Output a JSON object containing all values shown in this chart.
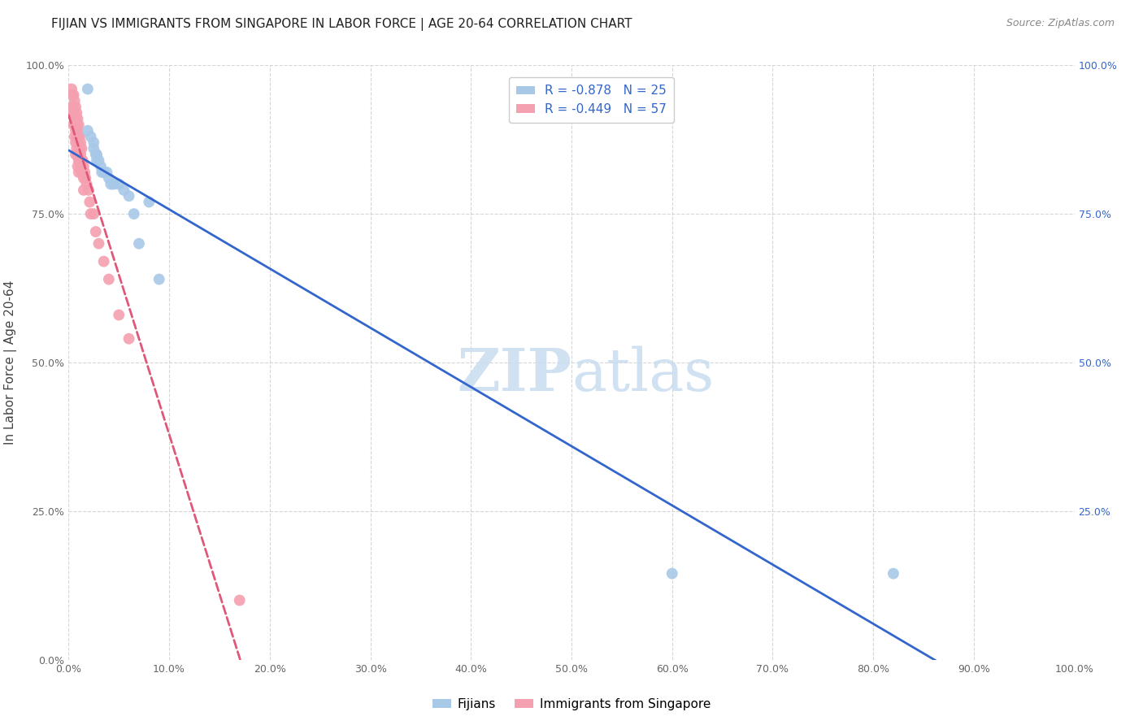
{
  "title": "FIJIAN VS IMMIGRANTS FROM SINGAPORE IN LABOR FORCE | AGE 20-64 CORRELATION CHART",
  "source": "Source: ZipAtlas.com",
  "ylabel": "In Labor Force | Age 20-64",
  "xlim": [
    0.0,
    1.0
  ],
  "ylim": [
    0.0,
    1.0
  ],
  "xtick_labels": [
    "0.0%",
    "10.0%",
    "20.0%",
    "30.0%",
    "40.0%",
    "50.0%",
    "60.0%",
    "70.0%",
    "80.0%",
    "90.0%",
    "100.0%"
  ],
  "xtick_values": [
    0.0,
    0.1,
    0.2,
    0.3,
    0.4,
    0.5,
    0.6,
    0.7,
    0.8,
    0.9,
    1.0
  ],
  "ytick_values": [
    0.0,
    0.25,
    0.5,
    0.75,
    1.0
  ],
  "ytick_labels": [
    "0.0%",
    "25.0%",
    "50.0%",
    "75.0%",
    "100.0%"
  ],
  "right_ytick_labels": [
    "100.0%",
    "75.0%",
    "50.0%",
    "25.0%"
  ],
  "right_ytick_values": [
    1.0,
    0.75,
    0.5,
    0.25
  ],
  "fijian_color": "#A8C8E8",
  "singapore_color": "#F4A0B0",
  "fijian_line_color": "#3366CC",
  "singapore_line_color": "#E05878",
  "legend_R_fijian": "R = -0.878",
  "legend_N_fijian": "N = 25",
  "legend_R_singapore": "R = -0.449",
  "legend_N_singapore": "N = 57",
  "watermark_part1": "ZIP",
  "watermark_part2": "atlas",
  "fijian_x": [
    0.019,
    0.019,
    0.022,
    0.025,
    0.025,
    0.027,
    0.028,
    0.028,
    0.03,
    0.032,
    0.033,
    0.035,
    0.038,
    0.04,
    0.042,
    0.045,
    0.05,
    0.055,
    0.06,
    0.065,
    0.07,
    0.08,
    0.09,
    0.6,
    0.82
  ],
  "fijian_y": [
    0.96,
    0.89,
    0.88,
    0.87,
    0.86,
    0.85,
    0.85,
    0.84,
    0.84,
    0.83,
    0.82,
    0.82,
    0.82,
    0.81,
    0.8,
    0.8,
    0.8,
    0.79,
    0.78,
    0.75,
    0.7,
    0.77,
    0.64,
    0.145,
    0.145
  ],
  "singapore_x": [
    0.003,
    0.004,
    0.004,
    0.005,
    0.005,
    0.005,
    0.005,
    0.006,
    0.006,
    0.006,
    0.006,
    0.007,
    0.007,
    0.007,
    0.007,
    0.007,
    0.008,
    0.008,
    0.008,
    0.008,
    0.009,
    0.009,
    0.009,
    0.009,
    0.009,
    0.01,
    0.01,
    0.01,
    0.01,
    0.01,
    0.011,
    0.011,
    0.011,
    0.012,
    0.012,
    0.012,
    0.013,
    0.013,
    0.013,
    0.014,
    0.015,
    0.015,
    0.015,
    0.016,
    0.017,
    0.018,
    0.02,
    0.021,
    0.022,
    0.025,
    0.027,
    0.03,
    0.035,
    0.04,
    0.05,
    0.06,
    0.17
  ],
  "singapore_y": [
    0.96,
    0.95,
    0.93,
    0.95,
    0.93,
    0.92,
    0.9,
    0.94,
    0.92,
    0.9,
    0.88,
    0.93,
    0.91,
    0.89,
    0.87,
    0.85,
    0.92,
    0.9,
    0.88,
    0.86,
    0.91,
    0.89,
    0.87,
    0.85,
    0.83,
    0.9,
    0.88,
    0.86,
    0.84,
    0.82,
    0.88,
    0.86,
    0.84,
    0.87,
    0.85,
    0.83,
    0.86,
    0.84,
    0.82,
    0.84,
    0.83,
    0.81,
    0.79,
    0.82,
    0.81,
    0.8,
    0.79,
    0.77,
    0.75,
    0.75,
    0.72,
    0.7,
    0.67,
    0.64,
    0.58,
    0.54,
    0.1
  ],
  "background_color": "#FFFFFF",
  "grid_color": "#CCCCCC"
}
